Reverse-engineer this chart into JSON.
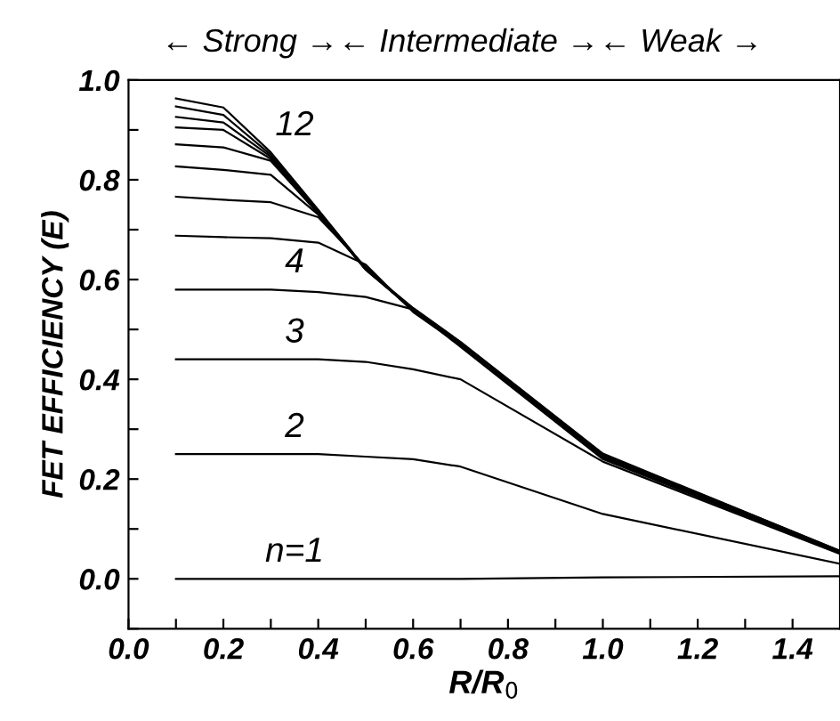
{
  "chart_data": {
    "type": "line",
    "annotations": [
      "← Strong →← Intermediate →← Weak →"
    ],
    "xlabel": "R/R$_{0}$",
    "ylabel": "FET EFFICIENCY (E)",
    "x": [
      0.1,
      0.2,
      0.3,
      0.4,
      0.5,
      0.6,
      0.7,
      1.0,
      1.5
    ],
    "series": [
      {
        "name": "n=1",
        "color": "#000000",
        "values": [
          0,
          0,
          0,
          0,
          0,
          0,
          0,
          0.003,
          0.005
        ]
      },
      {
        "name": "2",
        "color": "#000000",
        "values": [
          0.25,
          0.25,
          0.25,
          0.25,
          0.245,
          0.24,
          0.225,
          0.13,
          0.03
        ]
      },
      {
        "name": "3",
        "color": "#000000",
        "values": [
          0.44,
          0.44,
          0.44,
          0.44,
          0.435,
          0.42,
          0.4,
          0.235,
          0.05
        ]
      },
      {
        "name": "4",
        "color": "#000000",
        "values": [
          0.58,
          0.58,
          0.58,
          0.575,
          0.565,
          0.54,
          0.465,
          0.24,
          0.052
        ]
      },
      {
        "color": "#000000",
        "values": [
          0.688,
          0.685,
          0.683,
          0.674,
          0.63,
          0.535,
          0.468,
          0.243,
          0.053
        ]
      },
      {
        "color": "#000000",
        "values": [
          0.766,
          0.76,
          0.755,
          0.725,
          0.625,
          0.537,
          0.47,
          0.245,
          0.054
        ]
      },
      {
        "color": "#000000",
        "values": [
          0.827,
          0.82,
          0.81,
          0.73,
          0.622,
          0.538,
          0.47,
          0.246,
          0.054
        ]
      },
      {
        "color": "#000000",
        "values": [
          0.871,
          0.865,
          0.838,
          0.732,
          0.62,
          0.539,
          0.471,
          0.247,
          0.055
        ]
      },
      {
        "color": "#000000",
        "values": [
          0.905,
          0.9,
          0.842,
          0.734,
          0.62,
          0.54,
          0.472,
          0.248,
          0.055
        ]
      },
      {
        "color": "#000000",
        "values": [
          0.926,
          0.915,
          0.846,
          0.736,
          0.62,
          0.541,
          0.473,
          0.249,
          0.055
        ]
      },
      {
        "color": "#000000",
        "values": [
          0.947,
          0.93,
          0.85,
          0.738,
          0.621,
          0.542,
          0.474,
          0.25,
          0.056
        ]
      },
      {
        "name": "12",
        "color": "#000000",
        "values": [
          0.963,
          0.945,
          0.855,
          0.74,
          0.622,
          0.543,
          0.475,
          0.251,
          0.056
        ]
      }
    ],
    "xlim": [
      0,
      1.5
    ],
    "ylim": [
      -0.1,
      1.0
    ],
    "xticks": [
      {
        "value": 0.0,
        "label": "0.0"
      },
      {
        "value": 0.1,
        "label": null
      },
      {
        "value": 0.2,
        "label": "0.2"
      },
      {
        "value": 0.3,
        "label": null
      },
      {
        "value": 0.4,
        "label": "0.4"
      },
      {
        "value": 0.5,
        "label": null
      },
      {
        "value": 0.6,
        "label": "0.6"
      },
      {
        "value": 0.7,
        "label": null
      },
      {
        "value": 0.8,
        "label": "0.8"
      },
      {
        "value": 0.9,
        "label": null
      },
      {
        "value": 1.0,
        "label": "1.0"
      },
      {
        "value": 1.1,
        "label": null
      },
      {
        "value": 1.2,
        "label": "1.2"
      },
      {
        "value": 1.3,
        "label": null
      },
      {
        "value": 1.4,
        "label": "1.4"
      }
    ],
    "yticks": [
      {
        "value": -0.1,
        "label": null
      },
      {
        "value": 0.0,
        "label": "0.0"
      },
      {
        "value": 0.1,
        "label": null
      },
      {
        "value": 0.2,
        "label": "0.2"
      },
      {
        "value": 0.3,
        "label": null
      },
      {
        "value": 0.4,
        "label": "0.4"
      },
      {
        "value": 0.5,
        "label": null
      },
      {
        "value": 0.6,
        "label": "0.6"
      },
      {
        "value": 0.7,
        "label": null
      },
      {
        "value": 0.8,
        "label": "0.8"
      },
      {
        "value": 0.9,
        "label": null
      },
      {
        "value": 1.0,
        "label": "1.0"
      }
    ],
    "grid": false,
    "legend": false,
    "marker": "none",
    "line_style": "solid"
  }
}
